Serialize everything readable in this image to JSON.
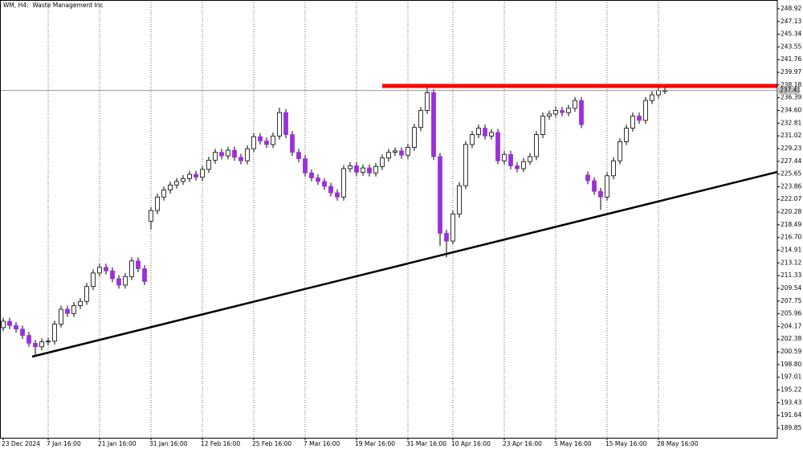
{
  "chart_data": {
    "type": "candlestick",
    "title": "WM, H4:  Waste Management Inc",
    "categories": [
      "23 Dec 2024",
      null,
      null,
      null,
      null,
      null,
      null,
      "7 Jan 16:00",
      null,
      null,
      null,
      null,
      null,
      null,
      null,
      "21 Jan 16:00",
      null,
      null,
      null,
      null,
      null,
      null,
      null,
      "31 Jan 16:00",
      null,
      null,
      null,
      null,
      null,
      null,
      null,
      "12 Feb 16:00",
      null,
      null,
      null,
      null,
      null,
      null,
      null,
      "25 Feb 16:00",
      null,
      null,
      null,
      null,
      null,
      null,
      null,
      "7 Mar 16:00",
      null,
      null,
      null,
      null,
      null,
      null,
      null,
      "19 Mar 16:00",
      null,
      null,
      null,
      null,
      null,
      null,
      null,
      "31 Mar 16:00",
      null,
      null,
      null,
      null,
      null,
      null,
      "10 Apr 16:00",
      null,
      null,
      null,
      null,
      null,
      null,
      null,
      "23 Apr 16:00",
      null,
      null,
      null,
      null,
      null,
      null,
      null,
      "5 May 16:00",
      null,
      null,
      null,
      null,
      null,
      null,
      null,
      "15 May 16:00",
      null,
      null,
      null,
      null,
      null,
      null,
      null,
      "28 May 16:00",
      null
    ],
    "open": [
      204.0,
      204.9,
      204.3,
      203.8,
      202.9,
      201.8,
      201.3,
      202.0,
      202.1,
      204.5,
      206.6,
      206.0,
      207.1,
      207.7,
      209.8,
      211.7,
      212.5,
      212.0,
      210.9,
      210.0,
      211.2,
      213.4,
      212.3,
      219.0,
      220.5,
      222.4,
      223.4,
      224.1,
      224.6,
      225.0,
      225.6,
      225.2,
      226.3,
      227.6,
      228.7,
      228.2,
      229.0,
      228.0,
      227.5,
      229.2,
      230.9,
      230.3,
      229.8,
      231.0,
      234.3,
      231.2,
      228.7,
      227.8,
      225.8,
      225.1,
      224.6,
      223.9,
      223.0,
      222.4,
      226.4,
      226.8,
      225.9,
      226.5,
      225.8,
      226.7,
      227.9,
      228.7,
      228.9,
      228.3,
      229.4,
      232.2,
      234.6,
      237.1,
      228.1,
      217.3,
      216.2,
      220.0,
      224.0,
      229.8,
      231.2,
      232.1,
      231.0,
      231.5,
      227.5,
      228.4,
      226.8,
      226.4,
      227.4,
      228.1,
      231.2,
      233.8,
      234.1,
      234.6,
      234.3,
      234.9,
      236.0,
      225.5,
      224.7,
      223.2,
      222.4,
      225.4,
      227.5,
      230.2,
      232.1,
      233.8,
      233.2,
      236.0,
      236.8,
      237.4
    ],
    "high": [
      205.4,
      205.4,
      204.8,
      204.3,
      203.4,
      202.3,
      202.5,
      202.6,
      205.0,
      207.1,
      207.1,
      207.6,
      208.2,
      210.3,
      212.2,
      213.0,
      213.0,
      212.5,
      211.4,
      211.7,
      213.9,
      213.9,
      212.8,
      221.0,
      222.9,
      223.9,
      224.6,
      225.1,
      225.5,
      226.1,
      226.1,
      226.8,
      228.1,
      229.2,
      229.2,
      229.5,
      229.5,
      228.5,
      229.7,
      231.4,
      231.4,
      230.8,
      231.5,
      235.0,
      234.8,
      231.7,
      229.2,
      228.3,
      226.3,
      225.6,
      225.1,
      224.4,
      223.5,
      226.9,
      227.3,
      227.3,
      227.0,
      227.0,
      227.2,
      228.4,
      229.2,
      229.4,
      229.4,
      229.9,
      232.7,
      235.1,
      238.2,
      237.6,
      228.6,
      217.8,
      220.5,
      224.5,
      230.3,
      231.7,
      232.6,
      232.6,
      232.0,
      232.0,
      228.9,
      228.9,
      227.3,
      227.9,
      228.6,
      231.7,
      234.3,
      234.6,
      235.1,
      235.1,
      235.4,
      236.5,
      236.5,
      226.0,
      225.2,
      223.7,
      225.9,
      228.0,
      230.7,
      232.6,
      234.3,
      234.3,
      236.5,
      237.3,
      238.0,
      237.9
    ],
    "low": [
      203.5,
      203.8,
      203.3,
      202.4,
      201.3,
      199.9,
      200.8,
      201.5,
      201.6,
      204.0,
      205.5,
      205.5,
      206.6,
      207.2,
      209.3,
      211.2,
      211.5,
      210.4,
      209.5,
      209.5,
      210.7,
      211.8,
      210.0,
      217.8,
      220.0,
      221.9,
      222.9,
      223.6,
      224.1,
      224.5,
      224.7,
      224.7,
      225.8,
      227.1,
      227.7,
      227.7,
      227.5,
      227.0,
      227.0,
      228.7,
      229.8,
      229.3,
      229.3,
      230.5,
      230.7,
      228.2,
      227.3,
      225.3,
      224.6,
      224.1,
      223.4,
      222.5,
      221.9,
      221.9,
      225.9,
      225.4,
      225.4,
      225.3,
      225.3,
      226.2,
      227.4,
      228.2,
      227.8,
      227.8,
      228.9,
      231.7,
      234.1,
      227.6,
      215.5,
      213.9,
      215.7,
      219.5,
      223.5,
      229.3,
      230.7,
      230.5,
      230.5,
      227.0,
      227.0,
      226.3,
      225.9,
      225.9,
      226.9,
      227.6,
      230.7,
      233.3,
      233.6,
      233.8,
      233.8,
      234.4,
      232.1,
      224.2,
      222.7,
      220.6,
      221.9,
      224.9,
      227.0,
      229.7,
      231.6,
      232.7,
      232.7,
      235.5,
      236.3,
      236.9
    ],
    "close": [
      204.9,
      204.3,
      203.8,
      202.9,
      201.8,
      201.3,
      202.0,
      202.1,
      204.5,
      206.6,
      206.0,
      207.1,
      207.7,
      209.8,
      211.7,
      212.5,
      212.0,
      210.9,
      210.0,
      211.2,
      213.4,
      212.3,
      210.5,
      220.5,
      222.4,
      223.4,
      224.1,
      224.6,
      225.0,
      225.6,
      225.2,
      226.3,
      227.6,
      228.7,
      228.2,
      229.0,
      228.0,
      227.5,
      229.2,
      230.9,
      230.3,
      229.8,
      231.0,
      234.3,
      231.2,
      228.7,
      227.8,
      225.8,
      225.1,
      224.6,
      223.9,
      223.0,
      222.4,
      226.4,
      226.8,
      225.9,
      226.5,
      225.8,
      226.7,
      227.9,
      228.7,
      228.9,
      228.3,
      229.4,
      232.2,
      234.6,
      237.1,
      228.1,
      217.3,
      216.2,
      220.0,
      224.0,
      229.8,
      231.2,
      232.1,
      231.0,
      231.5,
      227.5,
      228.4,
      226.8,
      226.4,
      227.4,
      228.1,
      231.2,
      233.8,
      234.1,
      234.6,
      234.3,
      234.9,
      236.0,
      232.6,
      224.7,
      223.2,
      222.4,
      225.4,
      227.5,
      230.2,
      232.1,
      233.8,
      233.2,
      236.0,
      236.8,
      237.4,
      237.41
    ],
    "up_color": "#ffffff",
    "down_color": "#9b30d9",
    "outline_color": "#000000",
    "last_price": 237.41,
    "ylim": [
      188.49,
      250.16
    ],
    "yticks": [
      248.92,
      247.13,
      245.34,
      243.55,
      241.76,
      239.97,
      238.18,
      236.39,
      {
        "value": 234.6,
        "label": "234.60"
      },
      232.81,
      231.02,
      229.23,
      227.44,
      225.65,
      223.86,
      222.07,
      220.28,
      218.49,
      {
        "value": 216.7,
        "label": "216.70"
      },
      214.91,
      213.12,
      211.33,
      209.54,
      207.75,
      205.96,
      204.17,
      202.38,
      200.59,
      {
        "value": 198.8,
        "label": "198.80"
      },
      197.01,
      195.22,
      193.43,
      191.64,
      189.85
    ],
    "grid": true,
    "lines": [
      {
        "color": "#000000",
        "x": [
          4.5,
          120.5
        ],
        "y": [
          199.92,
          225.94
        ]
      },
      {
        "color": "#ff0000",
        "x": [
          59,
          120.5
        ],
        "y": [
          238.05,
          238.05
        ]
      }
    ]
  }
}
